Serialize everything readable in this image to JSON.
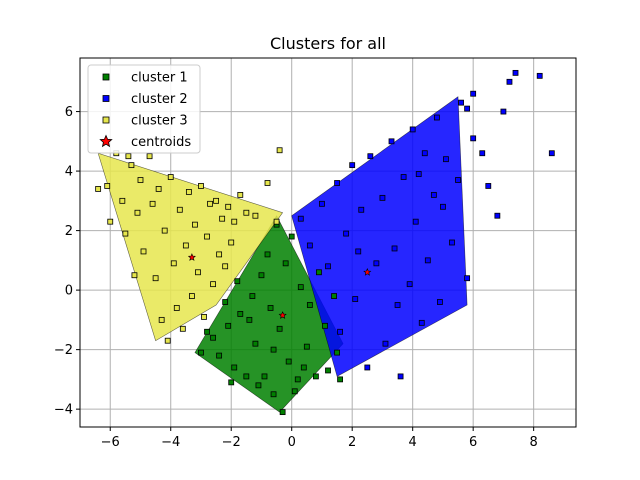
{
  "chart_data": {
    "type": "scatter",
    "title": "Clusters for all",
    "xlabel": "",
    "ylabel": "",
    "xlim": [
      -7.0,
      9.4
    ],
    "ylim": [
      -4.6,
      7.8
    ],
    "x_ticks": [
      -6,
      -4,
      -2,
      0,
      2,
      4,
      6,
      8
    ],
    "y_ticks": [
      -4,
      -2,
      0,
      2,
      4,
      6
    ],
    "x_tick_labels": [
      "−6",
      "−4",
      "−2",
      "0",
      "2",
      "4",
      "6",
      "8"
    ],
    "y_tick_labels": [
      "−4",
      "−2",
      "0",
      "2",
      "4",
      "6"
    ],
    "grid": true,
    "legend_position": "upper-left",
    "series": [
      {
        "name": "cluster 1",
        "color": "#008000",
        "marker": "square",
        "approx_region": [
          [
            -3.2,
            -2.1
          ],
          [
            -0.5,
            2.5
          ],
          [
            1.7,
            -1.8
          ],
          [
            -0.4,
            -4.1
          ]
        ],
        "points": [
          [
            -3.0,
            -2.1
          ],
          [
            -2.6,
            -1.6
          ],
          [
            -2.4,
            -2.2
          ],
          [
            -2.1,
            -1.2
          ],
          [
            -1.9,
            -2.6
          ],
          [
            -1.7,
            -0.8
          ],
          [
            -1.5,
            -2.9
          ],
          [
            -1.3,
            -0.2
          ],
          [
            -1.2,
            -1.8
          ],
          [
            -1.0,
            0.5
          ],
          [
            -0.9,
            -2.9
          ],
          [
            -0.8,
            1.2
          ],
          [
            -0.7,
            -0.6
          ],
          [
            -0.6,
            -3.5
          ],
          [
            -0.5,
            2.2
          ],
          [
            -0.4,
            -1.3
          ],
          [
            -0.3,
            -4.1
          ],
          [
            -0.2,
            0.9
          ],
          [
            -0.1,
            -2.4
          ],
          [
            0.0,
            1.8
          ],
          [
            0.2,
            -3.0
          ],
          [
            0.3,
            0.1
          ],
          [
            0.5,
            -1.9
          ],
          [
            0.6,
            -0.5
          ],
          [
            0.8,
            -2.9
          ],
          [
            0.9,
            0.6
          ],
          [
            1.1,
            -1.2
          ],
          [
            1.2,
            -2.7
          ],
          [
            1.4,
            -0.2
          ],
          [
            1.5,
            -2.1
          ],
          [
            1.6,
            -3.0
          ],
          [
            -2.2,
            -0.4
          ],
          [
            -1.8,
            0.3
          ],
          [
            -1.4,
            -1.0
          ],
          [
            -2.8,
            -1.4
          ],
          [
            -2.0,
            -3.1
          ],
          [
            -1.1,
            -3.2
          ],
          [
            0.1,
            -3.4
          ],
          [
            0.4,
            -2.6
          ],
          [
            -0.6,
            -2.0
          ]
        ]
      },
      {
        "name": "cluster 2",
        "color": "#0000ff",
        "marker": "square",
        "approx_region": [
          [
            0.0,
            2.5
          ],
          [
            5.5,
            6.5
          ],
          [
            5.8,
            -0.5
          ],
          [
            1.5,
            -2.9
          ]
        ],
        "points": [
          [
            0.3,
            2.4
          ],
          [
            0.6,
            1.5
          ],
          [
            1.0,
            2.9
          ],
          [
            1.2,
            0.8
          ],
          [
            1.5,
            3.6
          ],
          [
            1.6,
            -1.4
          ],
          [
            1.8,
            1.9
          ],
          [
            2.0,
            4.2
          ],
          [
            2.1,
            -0.3
          ],
          [
            2.3,
            2.7
          ],
          [
            2.5,
            -2.6
          ],
          [
            2.6,
            4.5
          ],
          [
            2.8,
            0.9
          ],
          [
            3.0,
            3.1
          ],
          [
            3.1,
            -1.8
          ],
          [
            3.3,
            5.0
          ],
          [
            3.4,
            1.4
          ],
          [
            3.6,
            -2.9
          ],
          [
            3.7,
            3.8
          ],
          [
            3.9,
            0.2
          ],
          [
            4.0,
            5.4
          ],
          [
            4.1,
            2.3
          ],
          [
            4.3,
            -1.1
          ],
          [
            4.4,
            4.6
          ],
          [
            4.5,
            1.0
          ],
          [
            4.7,
            3.2
          ],
          [
            4.8,
            5.8
          ],
          [
            4.9,
            -0.4
          ],
          [
            5.0,
            2.8
          ],
          [
            5.1,
            4.4
          ],
          [
            5.3,
            1.6
          ],
          [
            5.5,
            3.7
          ],
          [
            5.6,
            6.3
          ],
          [
            5.8,
            0.4
          ],
          [
            6.0,
            5.1
          ],
          [
            6.3,
            4.6
          ],
          [
            6.5,
            3.5
          ],
          [
            6.8,
            2.5
          ],
          [
            7.0,
            6.0
          ],
          [
            7.2,
            7.0
          ],
          [
            7.4,
            7.3
          ],
          [
            8.2,
            7.2
          ],
          [
            8.6,
            4.6
          ],
          [
            6.0,
            6.6
          ],
          [
            5.8,
            6.1
          ],
          [
            2.2,
            1.3
          ],
          [
            3.5,
            -0.5
          ],
          [
            4.2,
            3.9
          ]
        ]
      },
      {
        "name": "cluster 3",
        "color": "#e6e64d",
        "marker": "square",
        "approx_region": [
          [
            -6.4,
            4.6
          ],
          [
            -4.5,
            -1.7
          ],
          [
            -2.5,
            -0.5
          ],
          [
            -0.3,
            2.6
          ]
        ],
        "points": [
          [
            -6.1,
            3.5
          ],
          [
            -6.0,
            2.3
          ],
          [
            -5.8,
            4.6
          ],
          [
            -5.6,
            3.0
          ],
          [
            -5.5,
            1.9
          ],
          [
            -5.3,
            4.2
          ],
          [
            -5.1,
            2.6
          ],
          [
            -5.0,
            3.7
          ],
          [
            -4.9,
            1.3
          ],
          [
            -4.7,
            4.5
          ],
          [
            -4.6,
            2.9
          ],
          [
            -4.5,
            0.4
          ],
          [
            -4.4,
            3.4
          ],
          [
            -4.3,
            -1.0
          ],
          [
            -4.2,
            2.0
          ],
          [
            -4.1,
            -1.7
          ],
          [
            -4.0,
            3.8
          ],
          [
            -3.9,
            0.9
          ],
          [
            -3.8,
            -0.6
          ],
          [
            -3.7,
            2.7
          ],
          [
            -3.6,
            -1.3
          ],
          [
            -3.5,
            1.5
          ],
          [
            -3.4,
            3.3
          ],
          [
            -3.3,
            -0.2
          ],
          [
            -3.2,
            2.2
          ],
          [
            -3.1,
            0.6
          ],
          [
            -3.0,
            3.5
          ],
          [
            -2.9,
            -0.9
          ],
          [
            -2.8,
            1.8
          ],
          [
            -2.7,
            2.9
          ],
          [
            -2.6,
            0.2
          ],
          [
            -2.5,
            3.0
          ],
          [
            -2.4,
            1.2
          ],
          [
            -2.3,
            2.4
          ],
          [
            -2.2,
            0.8
          ],
          [
            -2.1,
            2.8
          ],
          [
            -2.0,
            1.6
          ],
          [
            -1.9,
            2.3
          ],
          [
            -1.7,
            3.2
          ],
          [
            -1.5,
            2.6
          ],
          [
            -1.2,
            2.5
          ],
          [
            -0.8,
            3.6
          ],
          [
            -0.4,
            4.7
          ],
          [
            -0.5,
            2.3
          ],
          [
            -5.2,
            0.5
          ],
          [
            -5.4,
            4.5
          ],
          [
            -6.4,
            3.4
          ]
        ]
      },
      {
        "name": "centroids",
        "color": "#ff0000",
        "marker": "star",
        "points": [
          [
            -0.3,
            -0.85
          ],
          [
            2.5,
            0.6
          ],
          [
            -3.3,
            1.1
          ]
        ]
      }
    ]
  }
}
